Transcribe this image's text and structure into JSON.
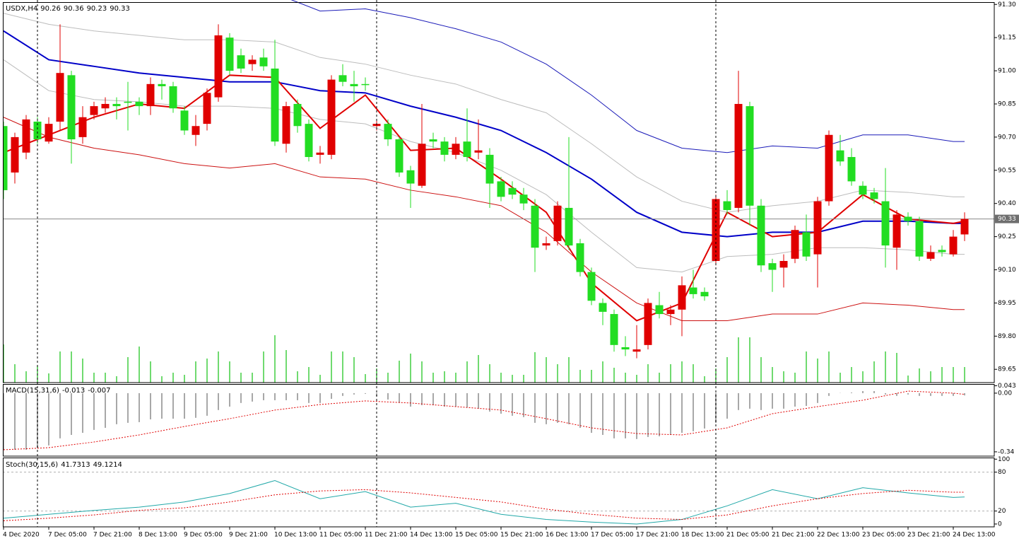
{
  "chart_data": [
    {
      "type": "candlestick",
      "title": "USDX,H4",
      "categories": [
        "4 Dec 2020",
        null,
        null,
        null,
        "7 Dec 05:00",
        null,
        null,
        null,
        "7 Dec 21:00",
        null,
        null,
        null,
        "8 Dec 13:00",
        null,
        null,
        null,
        "9 Dec 05:00",
        null,
        null,
        null,
        "9 Dec 21:00",
        null,
        null,
        null,
        "10 Dec 13:00",
        null,
        null,
        null,
        "11 Dec 05:00",
        null,
        null,
        null,
        "11 Dec 21:00",
        null,
        null,
        null,
        "14 Dec 13:00",
        null,
        null,
        null,
        "15 Dec 05:00",
        null,
        null,
        null,
        "15 Dec 21:00",
        null,
        null,
        null,
        "16 Dec 13:00",
        null,
        null,
        null,
        "17 Dec 05:00",
        null,
        null,
        null,
        "17 Dec 21:00",
        null,
        null,
        null,
        "18 Dec 13:00",
        null,
        null,
        null,
        "21 Dec 05:00",
        null,
        null,
        null,
        "21 Dec 21:00",
        null,
        null,
        null,
        "22 Dec 13:00",
        null,
        null,
        null,
        "23 Dec 05:00",
        null,
        null,
        null,
        "23 Dec 21:00",
        null,
        null,
        null,
        "24 Dec 13:00",
        null
      ],
      "open": [
        90.75,
        90.54,
        90.63,
        90.77,
        90.68,
        90.77,
        90.98,
        90.7,
        90.8,
        90.83,
        90.85,
        90.86,
        90.86,
        90.84,
        90.94,
        90.93,
        90.82,
        90.71,
        90.76,
        90.88,
        91.15,
        91.07,
        91.03,
        91.06,
        91.01,
        90.67,
        90.85,
        90.76,
        90.62,
        90.62,
        90.98,
        90.94,
        90.94,
        90.75,
        90.76,
        90.69,
        90.55,
        90.48,
        90.69,
        90.68,
        90.62,
        90.68,
        90.63,
        90.62,
        90.5,
        90.47,
        90.44,
        90.39,
        90.21,
        90.23,
        90.38,
        90.22,
        90.09,
        89.95,
        89.9,
        89.75,
        89.73,
        89.76,
        89.94,
        89.9,
        89.92,
        90.02,
        90.0,
        90.14,
        90.41,
        90.38,
        90.84,
        90.39,
        90.13,
        90.11,
        90.15,
        90.27,
        90.17,
        90.41,
        90.64,
        90.61,
        90.48,
        90.45,
        90.41,
        90.2,
        90.34,
        90.32,
        90.15,
        90.19,
        90.17,
        90.26
      ],
      "high": [
        90.77,
        90.72,
        90.8,
        90.79,
        90.79,
        91.21,
        91.0,
        90.84,
        90.86,
        90.88,
        90.88,
        90.95,
        90.88,
        90.97,
        90.96,
        90.95,
        90.84,
        90.8,
        90.92,
        91.21,
        91.17,
        91.1,
        91.07,
        91.1,
        91.14,
        90.86,
        90.87,
        90.78,
        90.66,
        90.98,
        91.03,
        91.0,
        90.97,
        90.78,
        90.78,
        90.7,
        90.57,
        90.85,
        90.72,
        90.7,
        90.7,
        90.83,
        90.78,
        90.65,
        90.52,
        90.5,
        90.47,
        90.42,
        90.25,
        90.41,
        90.7,
        90.24,
        90.11,
        89.97,
        89.92,
        89.8,
        89.85,
        89.97,
        90.0,
        89.94,
        90.07,
        90.1,
        90.02,
        90.44,
        90.46,
        91.0,
        90.86,
        90.42,
        90.15,
        90.17,
        90.3,
        90.35,
        90.43,
        90.73,
        90.71,
        90.65,
        90.5,
        90.47,
        90.56,
        90.37,
        90.36,
        90.34,
        90.21,
        90.21,
        90.28,
        90.36
      ],
      "low": [
        90.42,
        90.49,
        90.6,
        90.67,
        90.67,
        90.73,
        90.58,
        90.67,
        90.78,
        90.81,
        90.78,
        90.73,
        90.8,
        90.8,
        90.87,
        90.81,
        90.71,
        90.66,
        90.73,
        90.86,
        90.98,
        90.99,
        91.0,
        91.0,
        90.66,
        90.63,
        90.72,
        90.59,
        90.58,
        90.6,
        90.93,
        90.86,
        90.91,
        90.73,
        90.66,
        90.52,
        90.38,
        90.47,
        90.65,
        90.59,
        90.6,
        90.59,
        90.6,
        90.38,
        90.41,
        90.42,
        90.37,
        90.09,
        90.19,
        90.21,
        90.19,
        90.07,
        89.94,
        89.85,
        89.73,
        89.71,
        89.7,
        89.74,
        89.88,
        89.85,
        89.8,
        89.97,
        89.96,
        90.12,
        90.35,
        90.36,
        90.3,
        90.09,
        90.0,
        90.02,
        90.13,
        90.14,
        90.02,
        90.39,
        90.57,
        90.48,
        90.42,
        90.4,
        90.11,
        90.1,
        90.3,
        90.14,
        90.14,
        90.16,
        90.16,
        90.23
      ],
      "close": [
        90.46,
        90.7,
        90.78,
        90.69,
        90.76,
        90.99,
        90.69,
        90.79,
        90.84,
        90.85,
        90.84,
        90.86,
        90.84,
        90.94,
        90.93,
        90.83,
        90.73,
        90.75,
        90.9,
        91.16,
        91.0,
        91.01,
        91.05,
        91.02,
        90.68,
        90.84,
        90.75,
        90.61,
        90.63,
        90.96,
        90.95,
        90.93,
        90.94,
        90.76,
        90.69,
        90.54,
        90.49,
        90.67,
        90.68,
        90.62,
        90.67,
        90.61,
        90.64,
        90.49,
        90.43,
        90.44,
        90.4,
        90.2,
        90.22,
        90.39,
        90.21,
        90.09,
        89.96,
        89.91,
        89.76,
        89.74,
        89.74,
        89.95,
        89.9,
        89.92,
        90.03,
        89.99,
        89.98,
        90.42,
        90.37,
        90.85,
        90.39,
        90.12,
        90.1,
        90.14,
        90.28,
        90.16,
        90.41,
        90.71,
        90.59,
        90.5,
        90.44,
        90.42,
        90.21,
        90.35,
        90.32,
        90.16,
        90.18,
        90.18,
        90.25,
        90.33
      ],
      "volume": [
        54,
        26,
        16,
        24,
        13,
        44,
        44,
        34,
        14,
        14,
        9,
        36,
        51,
        30,
        9,
        14,
        11,
        30,
        34,
        44,
        30,
        14,
        14,
        44,
        67,
        46,
        16,
        22,
        11,
        44,
        44,
        36,
        12,
        20,
        14,
        31,
        41,
        30,
        14,
        16,
        14,
        30,
        39,
        26,
        14,
        11,
        11,
        43,
        36,
        26,
        36,
        18,
        18,
        30,
        21,
        14,
        11,
        26,
        14,
        26,
        30,
        26,
        9,
        20,
        36,
        64,
        64,
        36,
        22,
        16,
        14,
        44,
        34,
        44,
        14,
        22,
        16,
        30,
        44,
        42,
        10,
        20,
        16,
        22,
        22,
        22
      ],
      "bull_color": "#e00000",
      "bear_color": "#22dd22",
      "volume_color": "#10c010",
      "ylim": [
        89.59,
        91.32
      ],
      "yticks": [
        {
          "value": 91.3,
          "label": "91.30"
        },
        91.15,
        {
          "value": 91,
          "label": "91.00"
        },
        90.85,
        {
          "value": 90.7,
          "label": "90.70"
        },
        90.55,
        {
          "value": 90.4,
          "label": "90.40"
        },
        90.25,
        {
          "value": 90.1,
          "label": "90.10"
        },
        89.95,
        {
          "value": 89.8,
          "label": "89.80"
        },
        89.65
      ],
      "overlays": {
        "x": [
          0,
          4,
          8,
          12,
          16,
          20,
          24,
          28,
          32,
          36,
          40,
          44,
          48,
          52,
          56,
          60,
          64,
          68,
          72,
          76,
          80,
          84,
          85
        ],
        "series": [
          {
            "color": "#bcbcbc",
            "values": [
              91.26,
              91.21,
              91.18,
              91.16,
              91.14,
              91.14,
              91.13,
              91.06,
              91.03,
              90.98,
              90.94,
              90.87,
              90.81,
              90.67,
              90.52,
              90.41,
              90.36,
              90.39,
              90.41,
              90.46,
              90.45,
              90.43,
              90.43
            ]
          },
          {
            "color": "#bcbcbc",
            "values": [
              91.05,
              90.91,
              90.87,
              90.86,
              90.84,
              90.84,
              90.83,
              90.78,
              90.76,
              90.68,
              90.63,
              90.55,
              90.44,
              90.27,
              90.11,
              90.09,
              90.16,
              90.17,
              90.2,
              90.2,
              90.19,
              90.17,
              90.17
            ]
          },
          {
            "color": "#1a1ab8",
            "values": [
              null,
              null,
              null,
              null,
              null,
              null,
              91.35,
              91.27,
              91.28,
              91.24,
              91.19,
              91.13,
              91.03,
              90.89,
              90.73,
              90.65,
              90.63,
              90.66,
              90.65,
              90.71,
              90.71,
              90.68,
              90.68
            ]
          },
          {
            "color": "#cc1111",
            "values": [
              90.79,
              90.7,
              90.65,
              90.62,
              90.58,
              90.56,
              90.58,
              90.52,
              90.51,
              90.46,
              90.43,
              90.39,
              90.27,
              90.09,
              89.95,
              89.87,
              89.87,
              89.9,
              89.9,
              89.95,
              89.94,
              89.92,
              89.92
            ]
          },
          {
            "color": "#0000c8",
            "values": [
              91.18,
              91.05,
              91.02,
              90.99,
              90.97,
              90.95,
              90.95,
              90.91,
              90.9,
              90.84,
              90.79,
              90.73,
              90.63,
              90.51,
              90.36,
              90.27,
              90.25,
              90.27,
              90.27,
              90.32,
              90.32,
              90.31,
              90.31
            ]
          },
          {
            "color": "#e00000",
            "values": [
              90.63,
              90.71,
              90.79,
              90.85,
              90.83,
              90.98,
              90.97,
              90.74,
              90.89,
              90.64,
              90.65,
              90.51,
              90.36,
              90.04,
              89.87,
              89.95,
              90.36,
              90.25,
              90.27,
              90.44,
              90.33,
              90.31,
              90.32
            ]
          }
        ]
      }
    },
    {
      "type": "macd",
      "title": "MACD(15,31,6)",
      "values": [
        -0.328,
        -0.328,
        -0.328,
        -0.32,
        -0.303,
        -0.262,
        -0.242,
        -0.23,
        -0.213,
        -0.201,
        -0.18,
        -0.172,
        -0.168,
        -0.152,
        -0.148,
        -0.148,
        -0.148,
        -0.143,
        -0.131,
        -0.098,
        -0.078,
        -0.057,
        -0.049,
        -0.041,
        -0.041,
        -0.041,
        -0.041,
        -0.057,
        -0.057,
        -0.033,
        -0.016,
        -0.008,
        -0.004,
        -0.016,
        -0.037,
        -0.057,
        -0.078,
        -0.07,
        -0.07,
        -0.078,
        -0.078,
        -0.082,
        -0.09,
        -0.107,
        -0.119,
        -0.131,
        -0.139,
        -0.172,
        -0.18,
        -0.172,
        -0.18,
        -0.201,
        -0.23,
        -0.242,
        -0.262,
        -0.262,
        -0.266,
        -0.254,
        -0.25,
        -0.242,
        -0.23,
        -0.221,
        -0.205,
        -0.172,
        -0.148,
        -0.098,
        -0.09,
        -0.098,
        -0.09,
        -0.09,
        -0.078,
        -0.074,
        -0.057,
        -0.016,
        0.001,
        0.004,
        0.012,
        0.012,
        -0.008,
        -0.016,
        -0.008,
        -0.016,
        -0.016,
        -0.016,
        -0.016,
        -0.013
      ],
      "color": "#a8a8a8",
      "signal": {
        "color": "#e00000",
        "x": [
          0,
          4,
          8,
          12,
          16,
          20,
          24,
          28,
          32,
          36,
          40,
          44,
          48,
          52,
          56,
          60,
          64,
          68,
          72,
          76,
          80,
          84,
          85
        ],
        "values": [
          -0.328,
          -0.316,
          -0.283,
          -0.242,
          -0.193,
          -0.148,
          -0.098,
          -0.066,
          -0.045,
          -0.057,
          -0.078,
          -0.098,
          -0.148,
          -0.201,
          -0.234,
          -0.242,
          -0.201,
          -0.119,
          -0.078,
          -0.041,
          0.012,
          0,
          -0.007
        ]
      },
      "ylim": [
        -0.365,
        0.053
      ],
      "yticks": [
        0.043,
        {
          "value": 0,
          "label": "0.00"
        },
        -0.34
      ]
    },
    {
      "type": "stochastic",
      "title": "Stoch(30,15,6)",
      "x": [
        0,
        4,
        8,
        12,
        16,
        20,
        24,
        28,
        32,
        36,
        40,
        44,
        48,
        52,
        56,
        60,
        64,
        68,
        72,
        76,
        80,
        84,
        85
      ],
      "series": [
        {
          "color": "#20a8a8",
          "values": [
            9,
            15,
            21,
            26,
            34,
            47,
            67,
            39,
            50,
            26,
            32,
            15,
            7,
            3,
            0,
            7,
            28,
            53,
            39,
            56,
            48,
            41,
            41.7313
          ]
        },
        {
          "color": "#e00000",
          "values": [
            5,
            9,
            14,
            21,
            25,
            34,
            45,
            51,
            53,
            48,
            41,
            34,
            23,
            15,
            9,
            7,
            14,
            28,
            39,
            47,
            52,
            49,
            49.1214
          ]
        }
      ],
      "level_lines": [
        80,
        20
      ],
      "ylim": [
        -4.4,
        101.4
      ],
      "yticks": [
        100,
        80,
        20,
        0
      ]
    }
  ]
}
